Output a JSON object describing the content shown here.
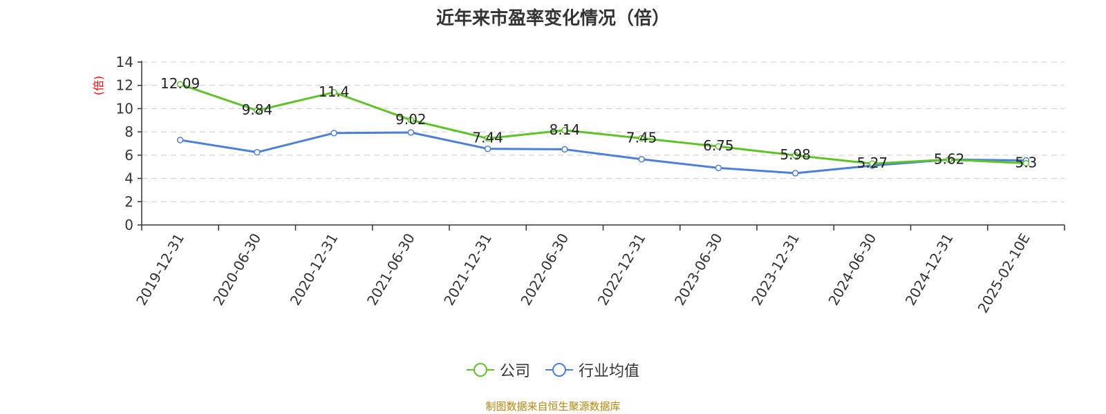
{
  "chart_data": {
    "type": "line",
    "title": "近年来市盈率变化情况（倍）",
    "ylabel": "(倍)",
    "xlabel": "",
    "ylim": [
      0,
      14
    ],
    "yticks": [
      "0",
      "2",
      "4",
      "6",
      "8",
      "10",
      "12",
      "14"
    ],
    "grid": true,
    "legend_position": "bottom",
    "categories": [
      "2019-12-31",
      "2020-06-30",
      "2020-12-31",
      "2021-06-30",
      "2021-12-31",
      "2022-06-30",
      "2022-12-31",
      "2023-06-30",
      "2023-12-31",
      "2024-06-30",
      "2024-12-31",
      "2025-02-10E"
    ],
    "series": [
      {
        "name": "公司",
        "color": "#5cc424",
        "values": [
          12.09,
          9.84,
          11.4,
          9.02,
          7.44,
          8.14,
          7.45,
          6.75,
          5.98,
          5.27,
          5.62,
          5.3
        ],
        "labels": [
          "12.09",
          "9.84",
          "11.4",
          "9.02",
          "7.44",
          "8.14",
          "7.45",
          "6.75",
          "5.98",
          "5.27",
          "5.62",
          "5.3"
        ]
      },
      {
        "name": "行业均值",
        "color": "#4a7fdc",
        "values": [
          7.3,
          6.25,
          7.9,
          7.95,
          6.55,
          6.5,
          5.65,
          4.9,
          4.45,
          5.1,
          5.62,
          5.55
        ]
      }
    ]
  },
  "footer": {
    "source": "制图数据来自恒生聚源数据库"
  }
}
